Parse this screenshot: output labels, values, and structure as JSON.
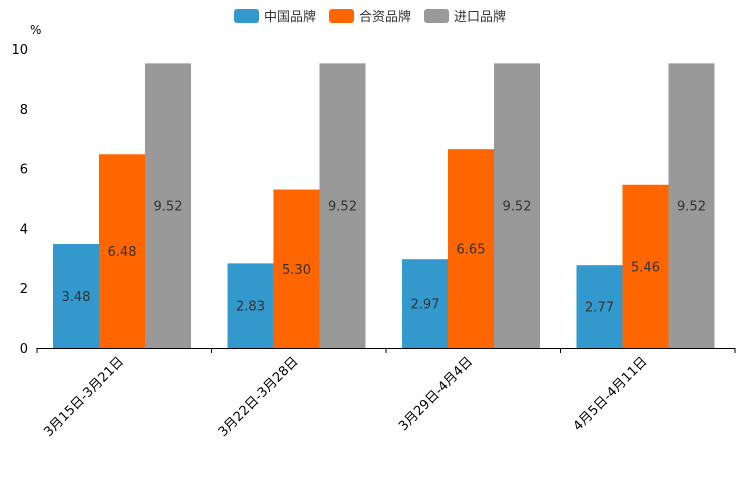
{
  "chart_data": {
    "type": "bar",
    "title": "",
    "xlabel": "",
    "ylabel": "%",
    "ylim": [
      0,
      10
    ],
    "yticks": [
      0,
      2,
      4,
      6,
      8,
      10
    ],
    "categories": [
      "3月15日-3月21日",
      "3月22日-3月28日",
      "3月29日-4月4日",
      "4月5日-4月11日"
    ],
    "series": [
      {
        "name": "中国品牌",
        "color": "#3399cc",
        "values": [
          3.48,
          2.83,
          2.97,
          2.77
        ],
        "labels": [
          "3.48",
          "2.83",
          "2.97",
          "2.77"
        ]
      },
      {
        "name": "合资品牌",
        "color": "#ff6600",
        "values": [
          6.48,
          5.3,
          6.65,
          5.46
        ],
        "labels": [
          "6.48",
          "5.30",
          "6.65",
          "5.46"
        ]
      },
      {
        "name": "进口品牌",
        "color": "#999999",
        "values": [
          9.52,
          9.52,
          9.52,
          9.52
        ],
        "labels": [
          "9.52",
          "9.52",
          "9.52",
          "9.52"
        ]
      }
    ],
    "legend_position": "top-center",
    "grid": false
  }
}
